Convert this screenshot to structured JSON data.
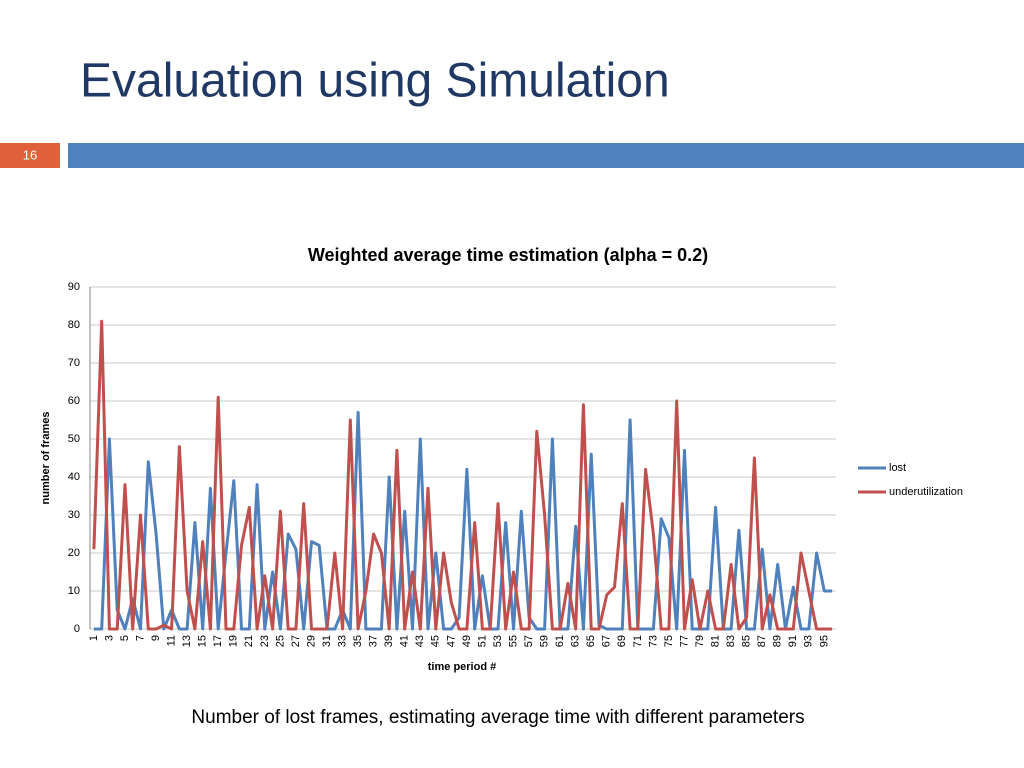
{
  "header": {
    "title": "Evaluation using Simulation",
    "slide_number": "16"
  },
  "chart_data": {
    "type": "line",
    "title": "Weighted average time estimation (alpha = 0.2)",
    "x_label": "time period #",
    "y_label": "number of frames",
    "categories": [
      1,
      null,
      3,
      null,
      5,
      null,
      7,
      null,
      9,
      null,
      11,
      null,
      13,
      null,
      15,
      null,
      17,
      null,
      19,
      null,
      21,
      null,
      23,
      null,
      25,
      null,
      27,
      null,
      29,
      null,
      31,
      null,
      33,
      null,
      35,
      null,
      37,
      null,
      39,
      null,
      41,
      null,
      43,
      null,
      45,
      null,
      47,
      null,
      49,
      null,
      51,
      null,
      53,
      null,
      55,
      null,
      57,
      null,
      59,
      null,
      61,
      null,
      63,
      null,
      65,
      null,
      67,
      null,
      69,
      null,
      71,
      null,
      73,
      null,
      75,
      null,
      77,
      null,
      79,
      null,
      81,
      null,
      83,
      null,
      85,
      null,
      87,
      null,
      89,
      null,
      91,
      null,
      93,
      null,
      95,
      null
    ],
    "series": [
      {
        "name": "lost",
        "color": "#4f81bd",
        "values": [
          0,
          0,
          50,
          5,
          0,
          8,
          0,
          44,
          25,
          0,
          5,
          0,
          0,
          28,
          0,
          37,
          0,
          20,
          39,
          0,
          0,
          38,
          0,
          15,
          0,
          25,
          21,
          0,
          23,
          22,
          0,
          0,
          5,
          0,
          57,
          0,
          0,
          0,
          40,
          0,
          31,
          0,
          50,
          0,
          20,
          0,
          0,
          3,
          42,
          0,
          14,
          0,
          0,
          28,
          0,
          31,
          3,
          0,
          0,
          50,
          0,
          0,
          27,
          0,
          46,
          1,
          0,
          0,
          0,
          55,
          0,
          0,
          0,
          29,
          24,
          0,
          47,
          0,
          0,
          0,
          32,
          0,
          0,
          26,
          0,
          0,
          21,
          0,
          17,
          0,
          11,
          0,
          0,
          20,
          10,
          10
        ]
      },
      {
        "name": "underutilization",
        "color": "#c0504d",
        "values": [
          21,
          81,
          0,
          0,
          38,
          0,
          30,
          0,
          0,
          1,
          0,
          48,
          10,
          0,
          23,
          0,
          61,
          0,
          0,
          22,
          32,
          0,
          14,
          0,
          31,
          0,
          0,
          33,
          0,
          0,
          0,
          20,
          0,
          55,
          0,
          10,
          25,
          20,
          0,
          47,
          0,
          15,
          0,
          37,
          0,
          20,
          7,
          0,
          0,
          28,
          0,
          0,
          33,
          0,
          15,
          0,
          0,
          52,
          30,
          0,
          0,
          12,
          0,
          59,
          0,
          0,
          9,
          11,
          33,
          0,
          0,
          42,
          25,
          0,
          0,
          60,
          0,
          13,
          0,
          10,
          0,
          0,
          17,
          0,
          3,
          45,
          0,
          9,
          0,
          0,
          0,
          20,
          10,
          0,
          0,
          0
        ]
      }
    ],
    "ylim": [
      0,
      90
    ],
    "yticks": [
      0,
      10,
      20,
      30,
      40,
      50,
      60,
      70,
      80,
      90
    ],
    "grid": true,
    "legend": "right"
  },
  "caption": "Number of lost frames, estimating average time with different parameters"
}
